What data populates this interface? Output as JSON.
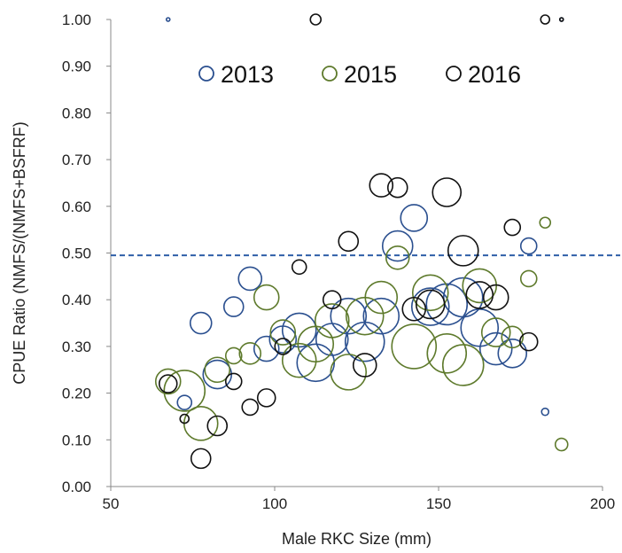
{
  "chart_data": {
    "type": "scatter",
    "xlabel": "Male RKC Size (mm)",
    "ylabel": "CPUE Ratio (NMFS/(NMFS+BSFRF)",
    "xlim": [
      50,
      200
    ],
    "ylim": [
      0,
      1
    ],
    "x_ticks": [
      "50",
      "100",
      "150",
      "200"
    ],
    "y_ticks": [
      "0.00",
      "0.10",
      "0.20",
      "0.30",
      "0.40",
      "0.50",
      "0.60",
      "0.70",
      "0.80",
      "0.90",
      "1.00"
    ],
    "reference_line": {
      "y": 0.495,
      "color": "#2e5fa8",
      "style": "dashed"
    },
    "legend": {
      "position": "top",
      "entries": [
        "2013",
        "2015",
        "2016"
      ]
    },
    "grid": false,
    "series": [
      {
        "name": "2013",
        "color": "#2a4f8f",
        "points": [
          {
            "x": 67.5,
            "y": 1.0,
            "size": 2
          },
          {
            "x": 72.5,
            "y": 0.18,
            "size": 8
          },
          {
            "x": 77.5,
            "y": 0.35,
            "size": 12
          },
          {
            "x": 82.5,
            "y": 0.24,
            "size": 16
          },
          {
            "x": 87.5,
            "y": 0.385,
            "size": 11
          },
          {
            "x": 92.5,
            "y": 0.445,
            "size": 13
          },
          {
            "x": 97.5,
            "y": 0.295,
            "size": 14
          },
          {
            "x": 102.5,
            "y": 0.315,
            "size": 15
          },
          {
            "x": 107.5,
            "y": 0.335,
            "size": 19
          },
          {
            "x": 112.5,
            "y": 0.265,
            "size": 21
          },
          {
            "x": 117.5,
            "y": 0.315,
            "size": 18
          },
          {
            "x": 122.5,
            "y": 0.365,
            "size": 20
          },
          {
            "x": 127.5,
            "y": 0.31,
            "size": 22
          },
          {
            "x": 132.5,
            "y": 0.365,
            "size": 20
          },
          {
            "x": 137.5,
            "y": 0.515,
            "size": 17
          },
          {
            "x": 142.5,
            "y": 0.575,
            "size": 15
          },
          {
            "x": 147.5,
            "y": 0.385,
            "size": 21
          },
          {
            "x": 152.5,
            "y": 0.39,
            "size": 23
          },
          {
            "x": 157.5,
            "y": 0.405,
            "size": 22
          },
          {
            "x": 162.5,
            "y": 0.34,
            "size": 21
          },
          {
            "x": 167.5,
            "y": 0.295,
            "size": 18
          },
          {
            "x": 172.5,
            "y": 0.285,
            "size": 16
          },
          {
            "x": 177.5,
            "y": 0.515,
            "size": 9
          },
          {
            "x": 182.5,
            "y": 0.16,
            "size": 4
          },
          {
            "x": 187.5,
            "y": 1.0,
            "size": 2
          }
        ]
      },
      {
        "name": "2015",
        "color": "#5e7a2c",
        "points": [
          {
            "x": 67.5,
            "y": 0.225,
            "size": 14
          },
          {
            "x": 72.5,
            "y": 0.205,
            "size": 23
          },
          {
            "x": 77.5,
            "y": 0.135,
            "size": 19
          },
          {
            "x": 82.5,
            "y": 0.25,
            "size": 14
          },
          {
            "x": 87.5,
            "y": 0.28,
            "size": 9
          },
          {
            "x": 92.5,
            "y": 0.285,
            "size": 12
          },
          {
            "x": 97.5,
            "y": 0.405,
            "size": 14
          },
          {
            "x": 102.5,
            "y": 0.33,
            "size": 14
          },
          {
            "x": 107.5,
            "y": 0.27,
            "size": 19
          },
          {
            "x": 112.5,
            "y": 0.305,
            "size": 20
          },
          {
            "x": 117.5,
            "y": 0.355,
            "size": 19
          },
          {
            "x": 122.5,
            "y": 0.245,
            "size": 20
          },
          {
            "x": 127.5,
            "y": 0.365,
            "size": 21
          },
          {
            "x": 132.5,
            "y": 0.405,
            "size": 18
          },
          {
            "x": 137.5,
            "y": 0.49,
            "size": 13
          },
          {
            "x": 142.5,
            "y": 0.3,
            "size": 25
          },
          {
            "x": 147.5,
            "y": 0.415,
            "size": 20
          },
          {
            "x": 152.5,
            "y": 0.285,
            "size": 22
          },
          {
            "x": 157.5,
            "y": 0.26,
            "size": 23
          },
          {
            "x": 162.5,
            "y": 0.43,
            "size": 19
          },
          {
            "x": 167.5,
            "y": 0.33,
            "size": 16
          },
          {
            "x": 172.5,
            "y": 0.32,
            "size": 12
          },
          {
            "x": 177.5,
            "y": 0.445,
            "size": 9
          },
          {
            "x": 182.5,
            "y": 0.565,
            "size": 6
          },
          {
            "x": 187.5,
            "y": 0.09,
            "size": 7
          }
        ]
      },
      {
        "name": "2016",
        "color": "#111111",
        "points": [
          {
            "x": 67.5,
            "y": 0.22,
            "size": 10
          },
          {
            "x": 72.5,
            "y": 0.145,
            "size": 5
          },
          {
            "x": 77.5,
            "y": 0.06,
            "size": 11
          },
          {
            "x": 82.5,
            "y": 0.13,
            "size": 11
          },
          {
            "x": 87.5,
            "y": 0.225,
            "size": 9
          },
          {
            "x": 92.5,
            "y": 0.17,
            "size": 9
          },
          {
            "x": 97.5,
            "y": 0.19,
            "size": 10
          },
          {
            "x": 102.5,
            "y": 0.3,
            "size": 9
          },
          {
            "x": 107.5,
            "y": 0.47,
            "size": 8
          },
          {
            "x": 112.5,
            "y": 1.0,
            "size": 6
          },
          {
            "x": 117.5,
            "y": 0.4,
            "size": 10
          },
          {
            "x": 122.5,
            "y": 0.525,
            "size": 11
          },
          {
            "x": 127.5,
            "y": 0.26,
            "size": 13
          },
          {
            "x": 132.5,
            "y": 0.645,
            "size": 13
          },
          {
            "x": 137.5,
            "y": 0.64,
            "size": 11
          },
          {
            "x": 142.5,
            "y": 0.38,
            "size": 13
          },
          {
            "x": 147.5,
            "y": 0.39,
            "size": 16
          },
          {
            "x": 152.5,
            "y": 0.63,
            "size": 16
          },
          {
            "x": 157.5,
            "y": 0.505,
            "size": 17
          },
          {
            "x": 162.5,
            "y": 0.41,
            "size": 15
          },
          {
            "x": 167.5,
            "y": 0.405,
            "size": 14
          },
          {
            "x": 172.5,
            "y": 0.555,
            "size": 9
          },
          {
            "x": 177.5,
            "y": 0.31,
            "size": 10
          },
          {
            "x": 182.5,
            "y": 1.0,
            "size": 5
          },
          {
            "x": 187.5,
            "y": 1.0,
            "size": 2
          }
        ]
      }
    ]
  }
}
